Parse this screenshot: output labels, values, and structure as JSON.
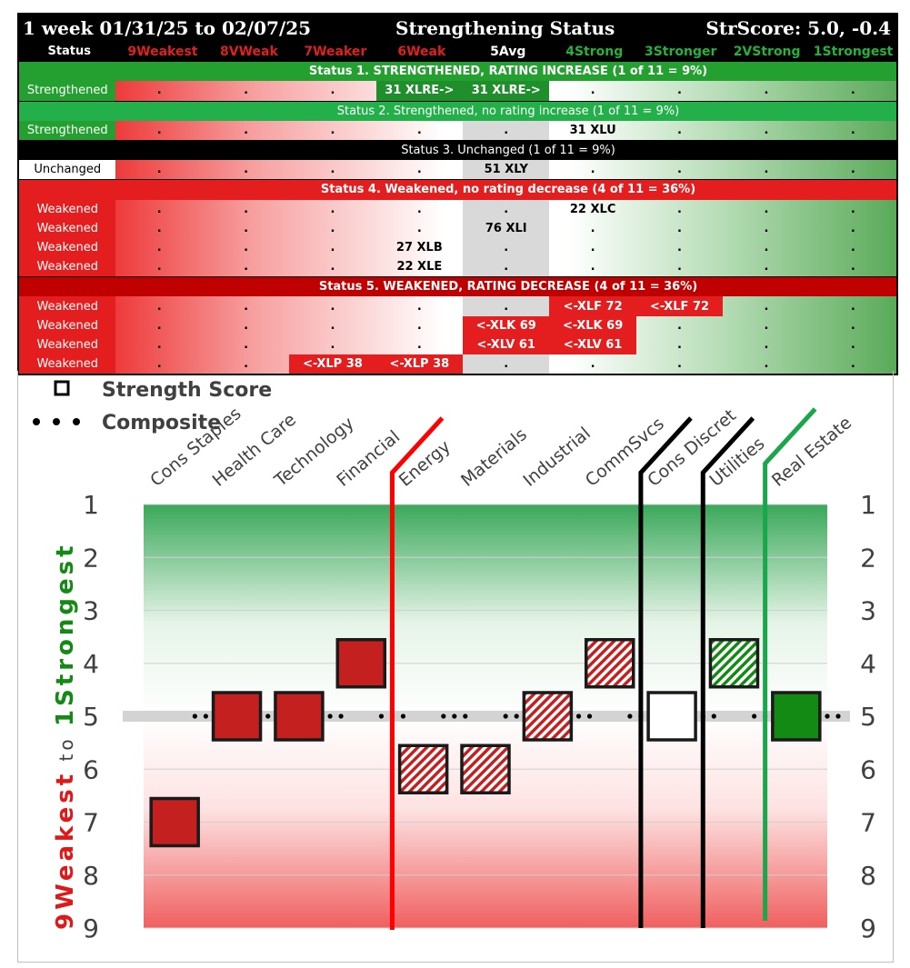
{
  "header": {
    "left": "1 week 01/31/25 to 02/07/25",
    "center": "Strengthening Status",
    "right": "StrScore: 5.0, -0.4"
  },
  "columns": [
    "Status",
    "9Weakest",
    "8VWeak",
    "7Weaker",
    "6Weak",
    "5Avg",
    "4Strong",
    "3Stronger",
    "2VStrong",
    "1Strongest"
  ],
  "column_colors": [
    "#ffffff",
    "#e02020",
    "#e02020",
    "#e02020",
    "#e02020",
    "#ffffff",
    "#22b33a",
    "#22b33a",
    "#22b33a",
    "#22b33a"
  ],
  "groups": [
    {
      "label": "Status 1. STRENGTHENED, RATING INCREASE (1 of 11 = 9%)",
      "band_bg": "#23a02f",
      "band_fg": "#ffffff",
      "bold": true,
      "rows": [
        {
          "status": "Strengthened",
          "status_bg": "#23a02f",
          "status_fg": "#ffffff",
          "cells": [
            ".",
            ".",
            ".",
            "31 XLRE->",
            "31 XLRE->",
            ".",
            ".",
            ".",
            "."
          ],
          "cell_bg": [
            null,
            null,
            null,
            "#1e8f2a",
            "#1e8f2a",
            null,
            null,
            null,
            null
          ],
          "cell_fg": [
            null,
            null,
            null,
            "#ffffff",
            "#ffffff",
            null,
            null,
            null,
            null
          ]
        }
      ]
    },
    {
      "label": "Status 2. Strengthened, no rating increase (1 of 11 = 9%)",
      "band_bg": "#23b04a",
      "band_fg": "#ffffff",
      "bold": false,
      "rows": [
        {
          "status": "Strengthened",
          "status_bg": "#23a02f",
          "status_fg": "#ffffff",
          "cells": [
            ".",
            ".",
            ".",
            ".",
            ".",
            "31 XLU",
            ".",
            ".",
            "."
          ],
          "cell_bg": [
            null,
            null,
            null,
            null,
            null,
            null,
            null,
            null,
            null
          ],
          "cell_fg": [
            null,
            null,
            null,
            null,
            null,
            null,
            null,
            null,
            null
          ]
        }
      ]
    },
    {
      "label": "Status 3. Unchanged (1 of 11 = 9%)",
      "band_bg": "#000000",
      "band_fg": "#ffffff",
      "bold": false,
      "rows": [
        {
          "status": "Unchanged",
          "status_bg": "#ffffff",
          "status_fg": "#000000",
          "cells": [
            ".",
            ".",
            ".",
            ".",
            "51 XLY",
            ".",
            ".",
            ".",
            "."
          ],
          "cell_bg": [
            null,
            null,
            null,
            null,
            null,
            null,
            null,
            null,
            null
          ],
          "cell_fg": [
            null,
            null,
            null,
            null,
            null,
            null,
            null,
            null,
            null
          ]
        }
      ]
    },
    {
      "label": "Status 4. Weakened, no rating decrease (4 of 11 = 36%)",
      "band_bg": "#e41e1e",
      "band_fg": "#ffffff",
      "bold": true,
      "rows": [
        {
          "status": "Weakened",
          "status_bg": "#e41e1e",
          "status_fg": "#ffffff",
          "cells": [
            ".",
            ".",
            ".",
            ".",
            ".",
            "22 XLC",
            ".",
            ".",
            "."
          ],
          "cell_bg": [
            null,
            null,
            null,
            null,
            null,
            null,
            null,
            null,
            null
          ],
          "cell_fg": [
            null,
            null,
            null,
            null,
            null,
            null,
            null,
            null,
            null
          ]
        },
        {
          "status": "Weakened",
          "status_bg": "#e41e1e",
          "status_fg": "#ffffff",
          "cells": [
            ".",
            ".",
            ".",
            ".",
            "76 XLI",
            ".",
            ".",
            ".",
            "."
          ],
          "cell_bg": [
            null,
            null,
            null,
            null,
            null,
            null,
            null,
            null,
            null
          ],
          "cell_fg": [
            null,
            null,
            null,
            null,
            null,
            null,
            null,
            null,
            null
          ]
        },
        {
          "status": "Weakened",
          "status_bg": "#e41e1e",
          "status_fg": "#ffffff",
          "cells": [
            ".",
            ".",
            ".",
            "27 XLB",
            ".",
            ".",
            ".",
            ".",
            "."
          ],
          "cell_bg": [
            null,
            null,
            null,
            null,
            null,
            null,
            null,
            null,
            null
          ],
          "cell_fg": [
            null,
            null,
            null,
            null,
            null,
            null,
            null,
            null,
            null
          ]
        },
        {
          "status": "Weakened",
          "status_bg": "#e41e1e",
          "status_fg": "#ffffff",
          "cells": [
            ".",
            ".",
            ".",
            "22 XLE",
            ".",
            ".",
            ".",
            ".",
            "."
          ],
          "cell_bg": [
            null,
            null,
            null,
            null,
            null,
            null,
            null,
            null,
            null
          ],
          "cell_fg": [
            null,
            null,
            null,
            null,
            null,
            null,
            null,
            null,
            null
          ]
        }
      ]
    },
    {
      "label": "Status 5. WEAKENED, RATING DECREASE (4 of 11 = 36%)",
      "band_bg": "#c00000",
      "band_fg": "#ffffff",
      "bold": true,
      "rows": [
        {
          "status": "Weakened",
          "status_bg": "#e41e1e",
          "status_fg": "#ffffff",
          "cells": [
            ".",
            ".",
            ".",
            ".",
            ".",
            "<-XLF 72",
            "<-XLF 72",
            ".",
            "."
          ],
          "cell_bg": [
            null,
            null,
            null,
            null,
            null,
            "#e41e1e",
            "#e41e1e",
            null,
            null
          ],
          "cell_fg": [
            null,
            null,
            null,
            null,
            null,
            "#ffffff",
            "#ffffff",
            null,
            null
          ]
        },
        {
          "status": "Weakened",
          "status_bg": "#e41e1e",
          "status_fg": "#ffffff",
          "cells": [
            ".",
            ".",
            ".",
            ".",
            "<-XLK 69",
            "<-XLK 69",
            ".",
            ".",
            "."
          ],
          "cell_bg": [
            null,
            null,
            null,
            null,
            "#e41e1e",
            "#e41e1e",
            null,
            null,
            null
          ],
          "cell_fg": [
            null,
            null,
            null,
            null,
            "#ffffff",
            "#ffffff",
            null,
            null,
            null
          ]
        },
        {
          "status": "Weakened",
          "status_bg": "#e41e1e",
          "status_fg": "#ffffff",
          "cells": [
            ".",
            ".",
            ".",
            ".",
            "<-XLV 61",
            "<-XLV 61",
            ".",
            ".",
            "."
          ],
          "cell_bg": [
            null,
            null,
            null,
            null,
            "#e41e1e",
            "#e41e1e",
            null,
            null,
            null
          ],
          "cell_fg": [
            null,
            null,
            null,
            null,
            "#ffffff",
            "#ffffff",
            null,
            null,
            null
          ]
        },
        {
          "status": "Weakened",
          "status_bg": "#e41e1e",
          "status_fg": "#ffffff",
          "cells": [
            ".",
            ".",
            "<-XLP 38",
            "<-XLP 38",
            ".",
            ".",
            ".",
            ".",
            "."
          ],
          "cell_bg": [
            null,
            null,
            "#e41e1e",
            "#e41e1e",
            null,
            null,
            null,
            null,
            null
          ],
          "cell_fg": [
            null,
            null,
            "#ffffff",
            "#ffffff",
            null,
            null,
            null,
            null,
            null
          ]
        }
      ]
    }
  ],
  "chart_data": {
    "type": "scatter",
    "legend": [
      {
        "label": "Strength Score",
        "marker": "square"
      },
      {
        "label": "Composite",
        "marker": "dots"
      }
    ],
    "legend_placement": "top-left",
    "categories": [
      "Cons Staples",
      "Health Care",
      "Technology",
      "Financial",
      "Energy",
      "Materials",
      "Industrial",
      "CommSvcs",
      "Cons Discret",
      "Utilities",
      "Real Estate"
    ],
    "strength_score": [
      7,
      5,
      5,
      4,
      6,
      6,
      5,
      4,
      5,
      4,
      5
    ],
    "styles": [
      "solid-red",
      "solid-red",
      "solid-red",
      "solid-red",
      "hatched-red",
      "hatched-red",
      "hatched-red",
      "hatched-red",
      "open-white",
      "hatched-green",
      "solid-green"
    ],
    "composite": 5,
    "ylim": [
      9,
      1
    ],
    "yticks": [
      1,
      2,
      3,
      4,
      5,
      6,
      7,
      8,
      9
    ],
    "ylabel_weak": "9Weakest",
    "ylabel_to": "to",
    "ylabel_strong": "1Strongest",
    "dividers": [
      {
        "after": "Financial",
        "color": "#ff0000"
      },
      {
        "after": "CommSvcs",
        "color": "#000000"
      },
      {
        "after": "Cons Discret",
        "color": "#000000"
      },
      {
        "after": "Utilities",
        "color": "#1aa64a"
      }
    ],
    "colors": {
      "red": "#c42020",
      "green": "#138a13",
      "hatch_red": "#c42020",
      "hatch_green": "#138a13"
    }
  }
}
